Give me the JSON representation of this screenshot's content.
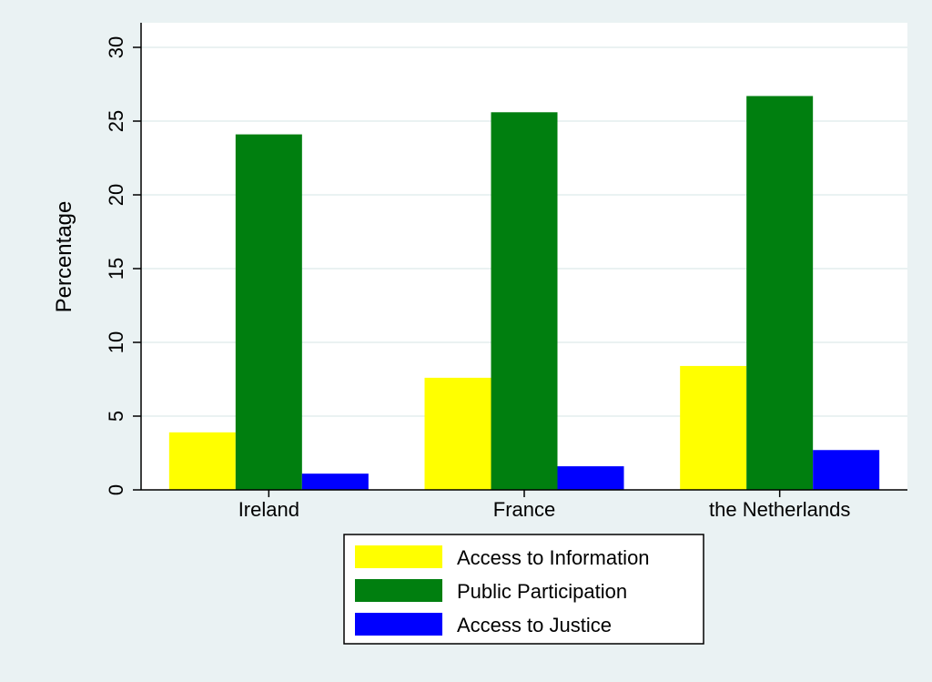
{
  "chart_data": {
    "type": "bar",
    "categories": [
      "Ireland",
      "France",
      "the Netherlands"
    ],
    "series": [
      {
        "name": "Access to Information",
        "color": "#ffff00",
        "values": [
          3.9,
          7.6,
          8.4
        ]
      },
      {
        "name": "Public Participation",
        "color": "#007f0f",
        "values": [
          24.1,
          25.6,
          26.7
        ]
      },
      {
        "name": "Access to Justice",
        "color": "#0000ff",
        "values": [
          1.1,
          1.6,
          2.7
        ]
      }
    ],
    "ylabel": "Percentage",
    "xlabel": "",
    "ylim": [
      0,
      30
    ],
    "yticks": [
      0,
      5,
      10,
      15,
      20,
      25,
      30
    ],
    "grid": true,
    "legend_position": "bottom"
  }
}
